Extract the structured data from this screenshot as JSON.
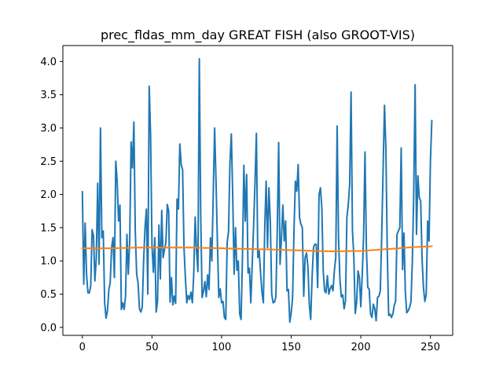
{
  "chart_data": {
    "type": "line",
    "title": "prec_fldas_mm_day GREAT FISH (also GROOT-VIS)",
    "xlabel": "",
    "ylabel": "",
    "xlim": [
      -14,
      266
    ],
    "ylim": [
      -0.12,
      4.24
    ],
    "xticks": [
      0,
      50,
      100,
      150,
      200,
      250
    ],
    "yticks": [
      0.0,
      0.5,
      1.0,
      1.5,
      2.0,
      2.5,
      3.0,
      3.5,
      4.0
    ],
    "ytick_labels": [
      "0.0",
      "0.5",
      "1.0",
      "1.5",
      "2.0",
      "2.5",
      "3.0",
      "3.5",
      "4.0"
    ],
    "grid": false,
    "legend": "none",
    "series": [
      {
        "color": "#1f77b4",
        "x_start": 0,
        "x_step": 1,
        "values": [
          2.04,
          0.65,
          1.57,
          0.8,
          0.52,
          0.52,
          0.62,
          1.47,
          1.38,
          0.7,
          1.04,
          2.17,
          0.95,
          3.0,
          1.35,
          1.45,
          0.38,
          0.14,
          0.25,
          0.56,
          0.68,
          1.2,
          1.35,
          0.75,
          2.5,
          2.2,
          1.6,
          1.84,
          0.27,
          0.37,
          0.27,
          0.46,
          1.4,
          0.8,
          1.3,
          2.79,
          2.4,
          3.09,
          1.45,
          0.8,
          0.67,
          0.28,
          0.23,
          0.3,
          1.0,
          1.5,
          1.78,
          0.5,
          3.63,
          2.9,
          1.24,
          0.83,
          1.35,
          0.23,
          0.4,
          1.54,
          0.73,
          1.76,
          1.05,
          1.17,
          1.28,
          1.85,
          1.75,
          0.38,
          0.75,
          0.34,
          0.47,
          0.36,
          1.93,
          1.78,
          2.76,
          2.45,
          2.37,
          1.2,
          0.74,
          0.37,
          0.48,
          0.42,
          0.53,
          0.37,
          0.8,
          1.66,
          1.15,
          0.84,
          4.04,
          1.72,
          0.45,
          0.54,
          0.69,
          0.46,
          0.79,
          0.57,
          1.35,
          1.0,
          2.0,
          3.0,
          2.2,
          1.28,
          0.45,
          0.58,
          0.37,
          0.39,
          0.15,
          0.12,
          1.27,
          1.45,
          2.48,
          2.91,
          1.98,
          0.8,
          1.5,
          0.86,
          1.0,
          0.2,
          0.12,
          1.05,
          2.44,
          1.6,
          2.3,
          0.82,
          0.89,
          0.37,
          0.95,
          1.53,
          2.18,
          2.92,
          1.05,
          1.15,
          0.82,
          0.53,
          0.37,
          1.5,
          2.2,
          1.2,
          2.1,
          1.6,
          0.5,
          0.37,
          0.38,
          0.46,
          1.47,
          2.78,
          0.95,
          1.35,
          1.84,
          1.3,
          1.6,
          0.55,
          0.57,
          0.08,
          0.22,
          0.45,
          1.45,
          2.2,
          2.05,
          2.45,
          1.65,
          1.55,
          1.5,
          0.47,
          1.05,
          1.12,
          0.92,
          0.35,
          0.12,
          0.75,
          1.2,
          1.25,
          1.25,
          0.6,
          2.0,
          2.1,
          1.8,
          0.85,
          0.55,
          0.52,
          0.78,
          0.5,
          0.58,
          0.63,
          0.55,
          0.85,
          1.05,
          3.03,
          1.35,
          0.72,
          0.46,
          0.49,
          0.28,
          0.4,
          1.65,
          1.85,
          2.15,
          3.54,
          1.45,
          1.06,
          0.21,
          0.38,
          0.85,
          0.75,
          0.31,
          0.78,
          1.36,
          2.64,
          1.2,
          0.6,
          0.58,
          0.2,
          0.15,
          0.35,
          0.28,
          0.1,
          0.45,
          0.47,
          0.55,
          1.38,
          2.36,
          3.34,
          2.7,
          1.16,
          0.18,
          0.2,
          0.15,
          0.2,
          0.33,
          0.4,
          1.4,
          1.45,
          1.5,
          2.7,
          0.87,
          1.42,
          0.52,
          0.22,
          0.25,
          0.3,
          0.38,
          0.98,
          2.0,
          3.65,
          1.4,
          2.28,
          1.95,
          1.9,
          1.03,
          0.6,
          0.39,
          0.5,
          1.6,
          1.3,
          2.5,
          3.11
        ]
      },
      {
        "color": "#ff7f0e",
        "x": [
          0,
          20,
          40,
          60,
          80,
          100,
          120,
          140,
          160,
          180,
          200,
          220,
          240,
          251
        ],
        "values": [
          1.19,
          1.19,
          1.2,
          1.2,
          1.2,
          1.19,
          1.18,
          1.17,
          1.155,
          1.145,
          1.15,
          1.18,
          1.21,
          1.22
        ]
      }
    ]
  }
}
